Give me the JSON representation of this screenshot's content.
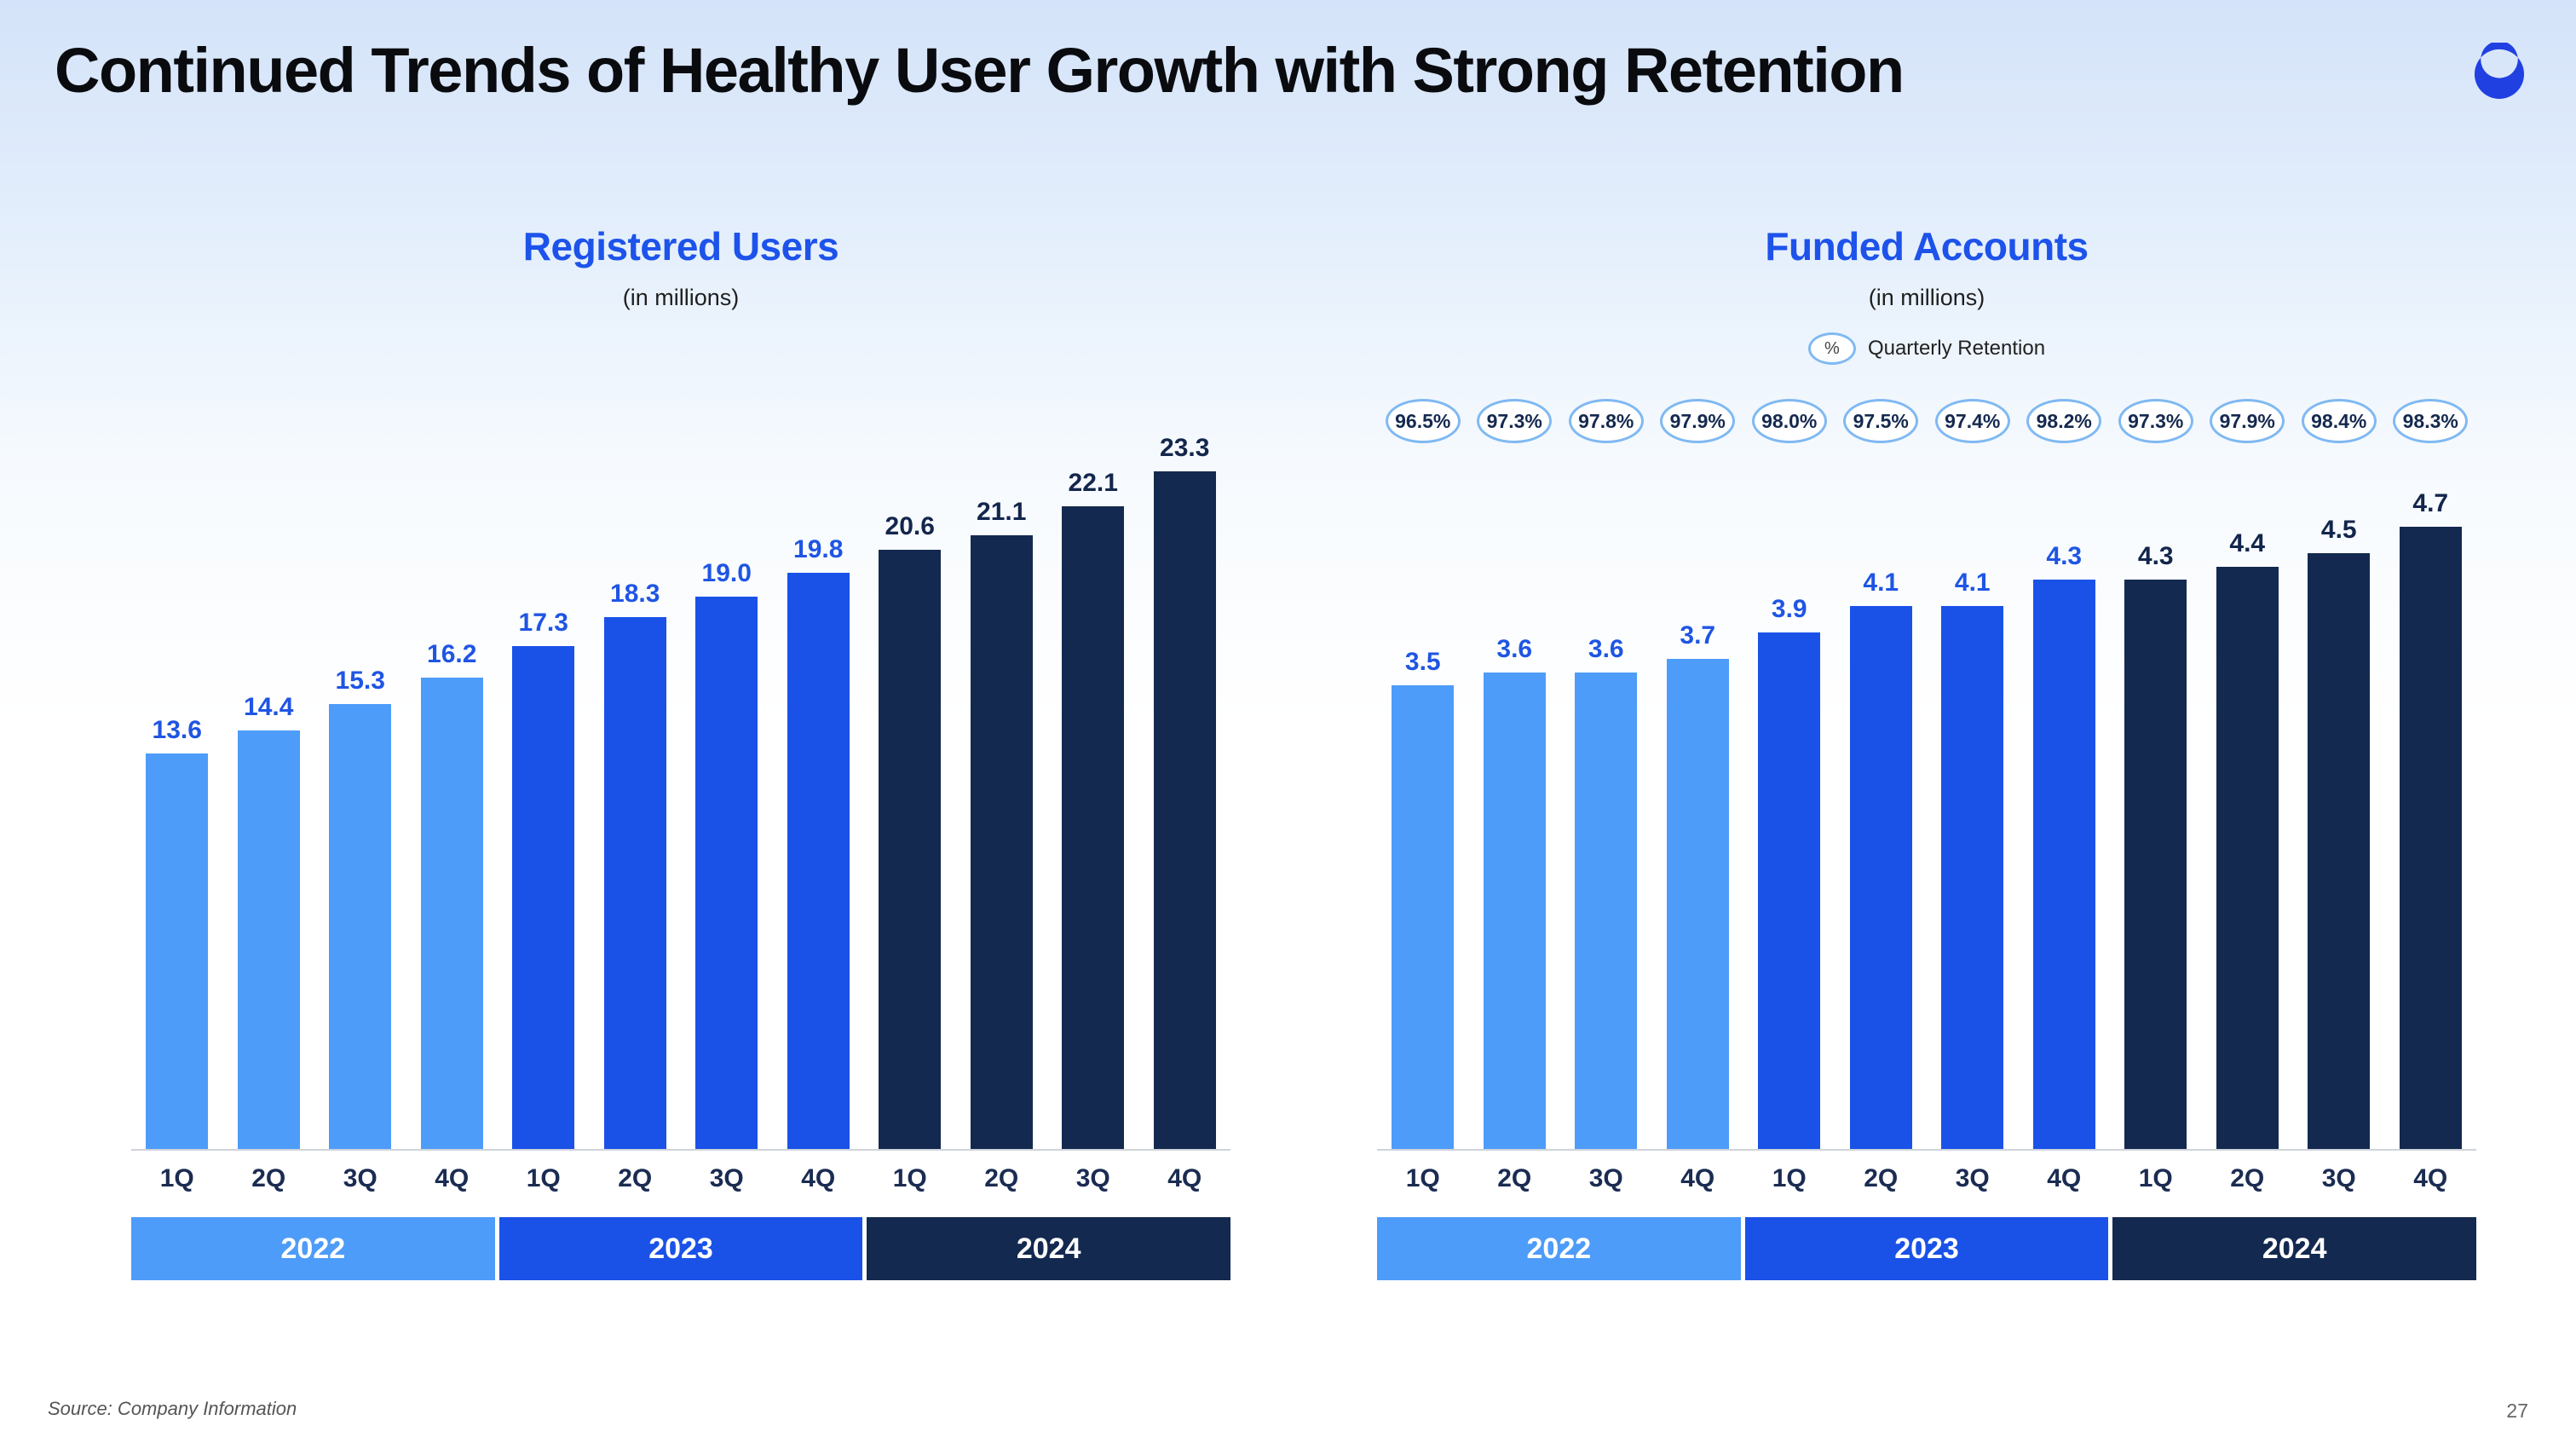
{
  "page": {
    "title": "Continued Trends of Healthy User Growth with Strong Retention",
    "source": "Source: Company Information",
    "page_number": "27",
    "logo": "crescent-moon"
  },
  "colors": {
    "accent": "#1d53ea",
    "logo": "#2140e2",
    "group_colors": [
      "#4e9cf9",
      "#1a52e8",
      "#13294f"
    ],
    "value_label_colors": [
      "#1f55e3",
      "#1f55e3",
      "#13264c"
    ],
    "year_text": "#ffffff",
    "quarter_label": "#1b2c52",
    "retention_border": "#7fb9f2",
    "retention_text": "#15294f"
  },
  "chart_data": [
    {
      "type": "bar",
      "title": "Registered Users",
      "subtitle": "(in millions)",
      "categories": [
        "1Q",
        "2Q",
        "3Q",
        "4Q",
        "1Q",
        "2Q",
        "3Q",
        "4Q",
        "1Q",
        "2Q",
        "3Q",
        "4Q"
      ],
      "values": [
        13.6,
        14.4,
        15.3,
        16.2,
        17.3,
        18.3,
        19.0,
        19.8,
        20.6,
        21.1,
        22.1,
        23.3
      ],
      "years": [
        {
          "label": "2022",
          "span": 4
        },
        {
          "label": "2023",
          "span": 4
        },
        {
          "label": "2024",
          "span": 4
        }
      ],
      "ylim": [
        0,
        23.3
      ],
      "grid": false,
      "value_labels": true,
      "legend_position": "none"
    },
    {
      "type": "bar",
      "title": "Funded Accounts",
      "subtitle": "(in millions)",
      "legend": {
        "symbol": "%",
        "label": "Quarterly Retention",
        "position": "top-center"
      },
      "retention": [
        "96.5%",
        "97.3%",
        "97.8%",
        "97.9%",
        "98.0%",
        "97.5%",
        "97.4%",
        "98.2%",
        "97.3%",
        "97.9%",
        "98.4%",
        "98.3%"
      ],
      "categories": [
        "1Q",
        "2Q",
        "3Q",
        "4Q",
        "1Q",
        "2Q",
        "3Q",
        "4Q",
        "1Q",
        "2Q",
        "3Q",
        "4Q"
      ],
      "values": [
        3.5,
        3.6,
        3.6,
        3.7,
        3.9,
        4.1,
        4.1,
        4.3,
        4.3,
        4.4,
        4.5,
        4.7
      ],
      "years": [
        {
          "label": "2022",
          "span": 4
        },
        {
          "label": "2023",
          "span": 4
        },
        {
          "label": "2024",
          "span": 4
        }
      ],
      "ylim": [
        0,
        4.7
      ],
      "grid": false,
      "value_labels": true
    }
  ]
}
